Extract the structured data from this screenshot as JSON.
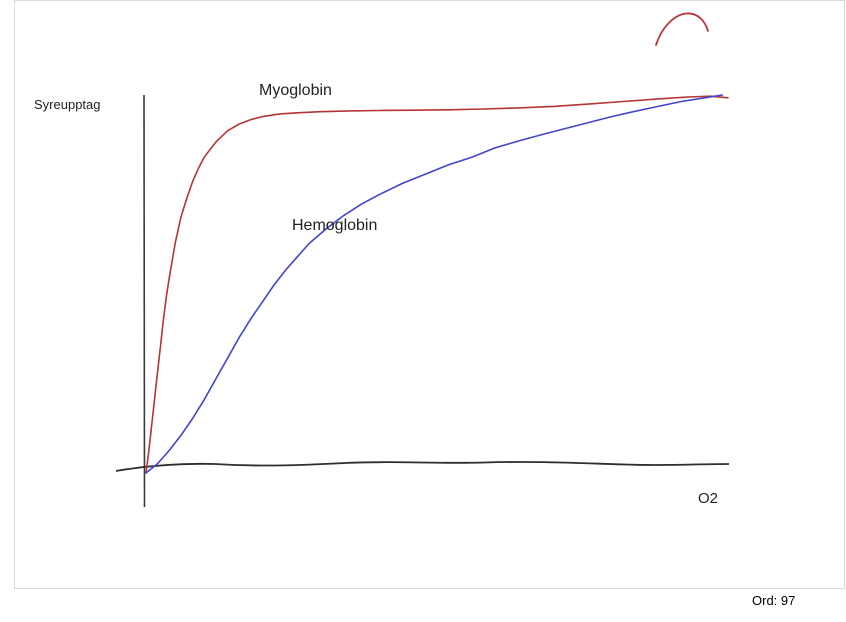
{
  "canvas": {
    "background": "#ffffff",
    "border_color": "#d9d9d9"
  },
  "labels": {
    "y_axis": "Syreupptag",
    "x_axis": "O2",
    "series_1": "Myoglobin",
    "series_2": "Hemoglobin"
  },
  "status": {
    "word_count": "Ord: 97"
  },
  "chart_data": {
    "type": "line",
    "title": "",
    "ylabel": "Syreupptag",
    "xlabel": "O2",
    "x_range": [
      0,
      100
    ],
    "y_range": [
      0,
      100
    ],
    "grid": false,
    "legend": "inline-labels",
    "style": "hand-drawn",
    "axes_color": "#2e2e2e",
    "stray_mark_color": "#b53434",
    "series": [
      {
        "name": "Myoglobin",
        "color": "#b53434",
        "shape": "hyperbolic-saturation",
        "points": [
          [
            0,
            0
          ],
          [
            0.5,
            6
          ],
          [
            1,
            13
          ],
          [
            1.5,
            20
          ],
          [
            2,
            27
          ],
          [
            2.5,
            34
          ],
          [
            3,
            41
          ],
          [
            3.5,
            47
          ],
          [
            4,
            52
          ],
          [
            5,
            61
          ],
          [
            6,
            68
          ],
          [
            7,
            73
          ],
          [
            8,
            77.5
          ],
          [
            9,
            81
          ],
          [
            10,
            84
          ],
          [
            12,
            88
          ],
          [
            14,
            91
          ],
          [
            16,
            92.8
          ],
          [
            18,
            94
          ],
          [
            20,
            94.8
          ],
          [
            23,
            95.5
          ],
          [
            26,
            95.8
          ],
          [
            30,
            96.1
          ],
          [
            35,
            96.3
          ],
          [
            40,
            96.4
          ],
          [
            46,
            96.5
          ],
          [
            52,
            96.6
          ],
          [
            58,
            96.8
          ],
          [
            64,
            97.1
          ],
          [
            70,
            97.5
          ],
          [
            76,
            98.1
          ],
          [
            82,
            98.8
          ],
          [
            88,
            99.5
          ],
          [
            93,
            100
          ],
          [
            97,
            100.2
          ],
          [
            100,
            99.8
          ]
        ]
      },
      {
        "name": "Hemoglobin",
        "color": "#4444cc",
        "shape": "sigmoidal-saturation",
        "points": [
          [
            0,
            0
          ],
          [
            2,
            2.5
          ],
          [
            4,
            6
          ],
          [
            6,
            10
          ],
          [
            8,
            14.5
          ],
          [
            10,
            19.5
          ],
          [
            12,
            25
          ],
          [
            14,
            30.5
          ],
          [
            16,
            36
          ],
          [
            18,
            41
          ],
          [
            20,
            45.5
          ],
          [
            22,
            50
          ],
          [
            24,
            54
          ],
          [
            26,
            57.5
          ],
          [
            28,
            61
          ],
          [
            31,
            65
          ],
          [
            34,
            68.5
          ],
          [
            37,
            71.5
          ],
          [
            40,
            74
          ],
          [
            44,
            77
          ],
          [
            48,
            79.5
          ],
          [
            52,
            82
          ],
          [
            56,
            84
          ],
          [
            60,
            86.5
          ],
          [
            64,
            88.3
          ],
          [
            68,
            90
          ],
          [
            72,
            91.6
          ],
          [
            76,
            93.2
          ],
          [
            80,
            94.8
          ],
          [
            84,
            96.2
          ],
          [
            88,
            97.5
          ],
          [
            92,
            98.8
          ],
          [
            96,
            99.8
          ],
          [
            99,
            100.5
          ]
        ]
      }
    ]
  }
}
